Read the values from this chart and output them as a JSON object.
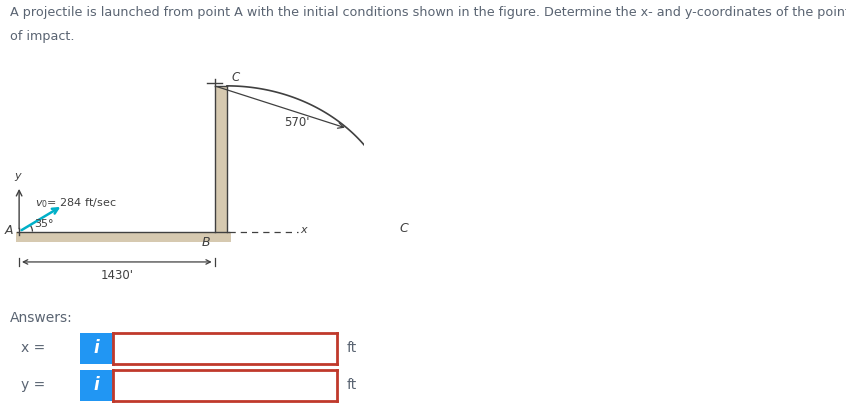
{
  "title_line1": "A projectile is launched from point A with the initial conditions shown in the figure. Determine the x- and y-coordinates of the point",
  "title_line2": "of impact.",
  "angle_label": "35°",
  "point_A": "A",
  "point_B": "B",
  "point_C": "C",
  "dist_label": "1430'",
  "height_label": "570'",
  "x_axis_label": "x",
  "y_axis_label": "y",
  "answers_label": "Answers:",
  "x_eq": "x =",
  "y_eq": "y =",
  "ft_label": "ft",
  "info_btn_color": "#2196F3",
  "input_border_color": "#c0392b",
  "bg_color": "#ffffff",
  "text_color": "#5a6472",
  "diagram_color": "#404040",
  "ground_color": "#d6c9b0",
  "wall_color": "#d6c9b0"
}
